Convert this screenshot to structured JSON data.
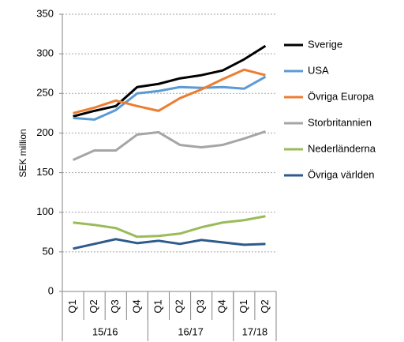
{
  "chart_data": {
    "type": "line",
    "ylabel": "SEK million",
    "categories": [
      "Q1",
      "Q2",
      "Q3",
      "Q4",
      "Q1",
      "Q2",
      "Q3",
      "Q4",
      "Q1",
      "Q2"
    ],
    "groups": [
      {
        "label": "15/16",
        "count": 4
      },
      {
        "label": "16/17",
        "count": 4
      },
      {
        "label": "17/18",
        "count": 2
      }
    ],
    "series": [
      {
        "name": "Sverige",
        "color": "#000000",
        "values": [
          221,
          228,
          234,
          258,
          262,
          269,
          273,
          279,
          293,
          310
        ]
      },
      {
        "name": "USA",
        "color": "#5b9bd5",
        "values": [
          219,
          217,
          229,
          250,
          253,
          258,
          257,
          258,
          256,
          271
        ]
      },
      {
        "name": "Övriga Europa",
        "color": "#ed7d31",
        "values": [
          225,
          232,
          241,
          234,
          228,
          244,
          255,
          268,
          280,
          273
        ]
      },
      {
        "name": "Storbritannien",
        "color": "#a5a5a5",
        "values": [
          166,
          178,
          178,
          198,
          201,
          185,
          182,
          185,
          193,
          202
        ]
      },
      {
        "name": "Nederländerna",
        "color": "#9bbb59",
        "values": [
          87,
          84,
          80,
          69,
          70,
          73,
          81,
          87,
          90,
          95
        ]
      },
      {
        "name": "Övriga världen",
        "color": "#2e5a8c",
        "values": [
          54,
          60,
          66,
          61,
          64,
          60,
          65,
          62,
          59,
          60
        ]
      }
    ],
    "ylim": [
      0,
      350
    ],
    "yticks": [
      0,
      50,
      100,
      150,
      200,
      250,
      300,
      350
    ],
    "grid": true,
    "legend": "right"
  }
}
